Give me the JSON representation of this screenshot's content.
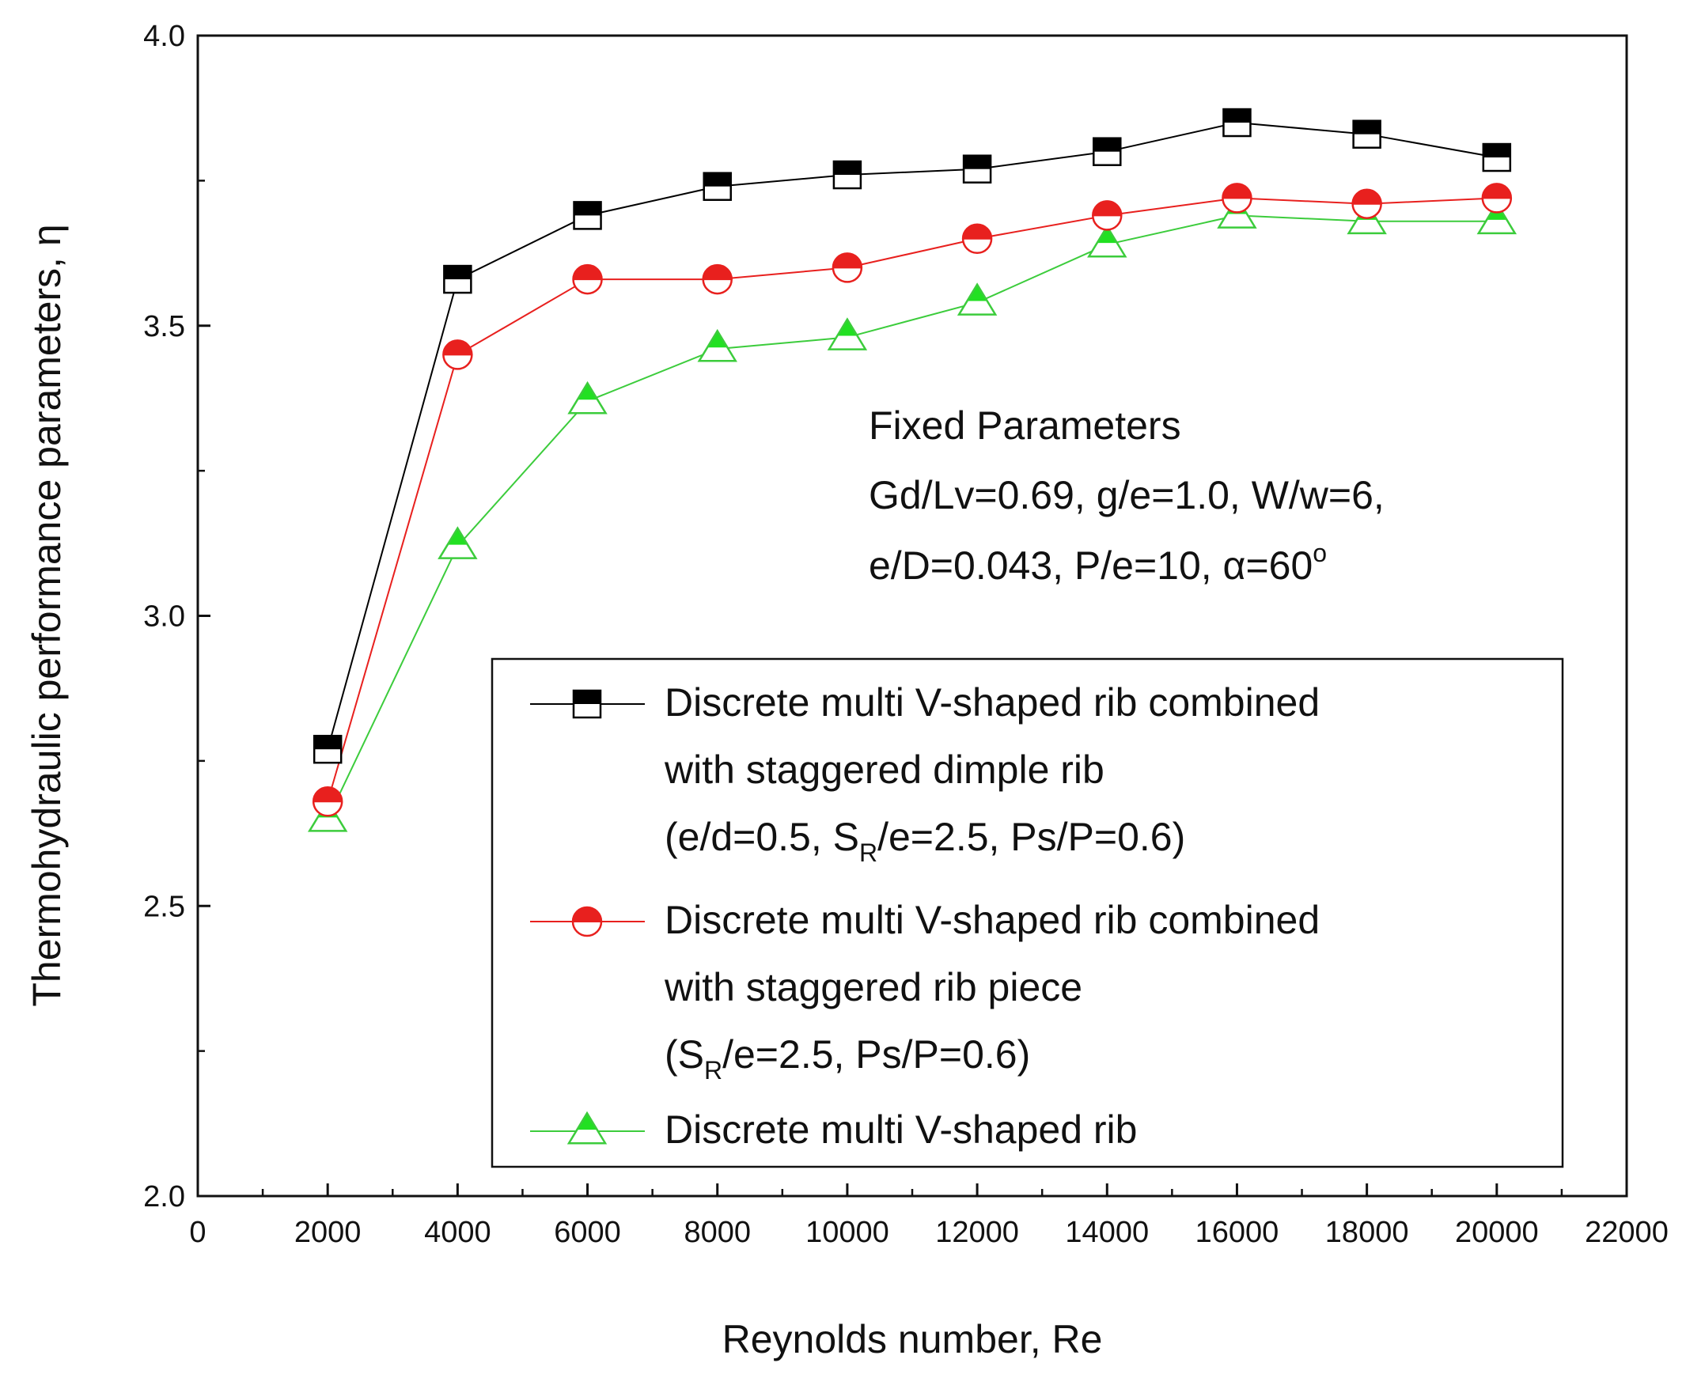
{
  "chart_data": {
    "type": "line",
    "xlabel": "Reynolds number, Re",
    "ylabel": "Thermohydraulic performance parameters, η",
    "xlim": [
      0,
      22000
    ],
    "ylim": [
      2.0,
      4.0
    ],
    "x_ticks": [
      0,
      2000,
      4000,
      6000,
      8000,
      10000,
      12000,
      14000,
      16000,
      18000,
      20000,
      22000
    ],
    "x_tick_labels": [
      "0",
      "2000",
      "4000",
      "6000",
      "8000",
      "10000",
      "12000",
      "14000",
      "16000",
      "18000",
      "20000",
      "22000"
    ],
    "y_ticks": [
      2.0,
      2.5,
      3.0,
      3.5,
      4.0
    ],
    "y_tick_labels": [
      "2.0",
      "2.5",
      "3.0",
      "3.5",
      "4.0"
    ],
    "x": [
      2000,
      4000,
      6000,
      8000,
      10000,
      12000,
      14000,
      16000,
      18000,
      20000
    ],
    "series": [
      {
        "name": "Discrete multi V-shaped rib combined with staggered dimple rib (e/d=0.5, SR/e=2.5, Ps/P=0.6)",
        "legend_lines": [
          "Discrete multi V-shaped rib combined",
          "with staggered dimple rib"
        ],
        "legend_param_prefix": "(e/d=0.5, S",
        "legend_param_sub": "R",
        "legend_param_suffix": "/e=2.5, Ps/P=0.6)",
        "marker": "half-square",
        "color": "#000000",
        "fill": "#000000",
        "values": [
          2.77,
          3.58,
          3.69,
          3.74,
          3.76,
          3.77,
          3.8,
          3.85,
          3.83,
          3.79
        ]
      },
      {
        "name": "Discrete multi V-shaped rib combined with staggered rib piece (SR/e=2.5, Ps/P=0.6)",
        "legend_lines": [
          "Discrete multi V-shaped rib combined",
          "with staggered rib piece"
        ],
        "legend_param_prefix": "(S",
        "legend_param_sub": "R",
        "legend_param_suffix": "/e=2.5, Ps/P=0.6)",
        "marker": "half-circle",
        "color": "#e8201e",
        "fill": "#e8201e",
        "values": [
          2.68,
          3.45,
          3.58,
          3.58,
          3.6,
          3.65,
          3.69,
          3.72,
          3.71,
          3.72
        ]
      },
      {
        "name": "Discrete multi V-shaped rib",
        "legend_lines": [
          "Discrete multi V-shaped rib"
        ],
        "marker": "half-triangle",
        "color": "#3ccc3c",
        "fill": "#22e022",
        "values": [
          2.65,
          3.12,
          3.37,
          3.46,
          3.48,
          3.54,
          3.64,
          3.69,
          3.68,
          3.68
        ]
      }
    ],
    "annotation": {
      "title": "Fixed Parameters",
      "line1": "Gd/Lv=0.69, g/e=1.0, W/w=6,",
      "line2_prefix": "e/D=0.043, P/e=10, α=60",
      "line2_sup": "o"
    },
    "legend_position": "lower-right"
  }
}
